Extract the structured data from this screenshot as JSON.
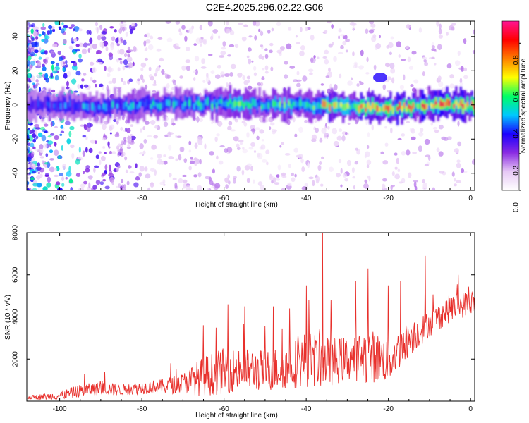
{
  "title": "C2E4.2025.296.02.22.G06",
  "chart_data": [
    {
      "type": "heatmap",
      "xlabel": "Height of straight line (km)",
      "ylabel": "Frequency (Hz)",
      "xlim": [
        -108,
        1
      ],
      "ylim": [
        -50,
        49
      ],
      "xticks": [
        -100,
        -80,
        -60,
        -40,
        -20,
        0
      ],
      "yticks": [
        -40,
        -20,
        0,
        20,
        40
      ],
      "colorbar": {
        "label": "Normalized spectral amplitude",
        "range": [
          0,
          0.92
        ],
        "ticks": [
          "0.0",
          "0.2",
          "0.4",
          "0.6",
          "0.8"
        ],
        "tick_values": [
          0,
          0.2,
          0.4,
          0.6,
          0.8
        ],
        "colormap": [
          "#ffffff",
          "#e6c8f5",
          "#8a2be2",
          "#1a00ff",
          "#00c8ff",
          "#00ff66",
          "#ffff00",
          "#ff8000",
          "#ff0000",
          "#ff1493"
        ]
      },
      "ridge": {
        "description_free_values": true,
        "x": [
          -108,
          -100,
          -90,
          -80,
          -70,
          -60,
          -50,
          -40,
          -30,
          -20,
          -10,
          0
        ],
        "center_freq": [
          0,
          0,
          -1,
          0,
          0,
          1,
          0,
          0,
          -1,
          -2,
          0,
          0
        ],
        "peak_amplitude": [
          0.3,
          0.45,
          0.45,
          0.5,
          0.5,
          0.6,
          0.55,
          0.7,
          0.75,
          0.8,
          0.9,
          0.85
        ]
      },
      "secondary_blob": {
        "x": -22,
        "freq": 16,
        "amplitude": 0.3
      }
    },
    {
      "type": "line",
      "xlabel": "Height of straight line (km)",
      "ylabel": "SNR (10 * v/v)",
      "xlim": [
        -108,
        1
      ],
      "ylim": [
        0,
        8000
      ],
      "xticks": [
        -100,
        -80,
        -60,
        -40,
        -20,
        0
      ],
      "yticks": [
        2000,
        4000,
        6000,
        8000
      ],
      "series_color": "#e8302c",
      "envelope": {
        "x": [
          -108,
          -100,
          -95,
          -90,
          -85,
          -80,
          -75,
          -70,
          -65,
          -60,
          -55,
          -50,
          -45,
          -40,
          -35,
          -30,
          -25,
          -20,
          -15,
          -10,
          -5,
          0
        ],
        "base": [
          150,
          200,
          400,
          500,
          450,
          550,
          600,
          700,
          900,
          1100,
          1200,
          1150,
          1300,
          1600,
          1500,
          1700,
          1800,
          1600,
          2700,
          3500,
          4200,
          4500
        ],
        "amp": [
          150,
          400,
          600,
          650,
          550,
          600,
          700,
          1000,
          1900,
          2200,
          2000,
          2000,
          2100,
          2700,
          2400,
          2100,
          2600,
          2100,
          1700,
          1300,
          1300,
          1200
        ]
      },
      "spikes": [
        {
          "x": -94,
          "y": 1300
        },
        {
          "x": -89,
          "y": 1400
        },
        {
          "x": -73,
          "y": 1800
        },
        {
          "x": -65,
          "y": 3600
        },
        {
          "x": -59,
          "y": 4600
        },
        {
          "x": -55,
          "y": 4500
        },
        {
          "x": -48,
          "y": 4500
        },
        {
          "x": -44,
          "y": 4400
        },
        {
          "x": -40,
          "y": 5500
        },
        {
          "x": -36,
          "y": 8200
        },
        {
          "x": -34,
          "y": 4800
        },
        {
          "x": -28,
          "y": 5700
        },
        {
          "x": -25,
          "y": 6300
        },
        {
          "x": -20,
          "y": 5500
        },
        {
          "x": -17,
          "y": 5700
        },
        {
          "x": -11,
          "y": 6900
        },
        {
          "x": -3,
          "y": 6000
        }
      ]
    }
  ]
}
